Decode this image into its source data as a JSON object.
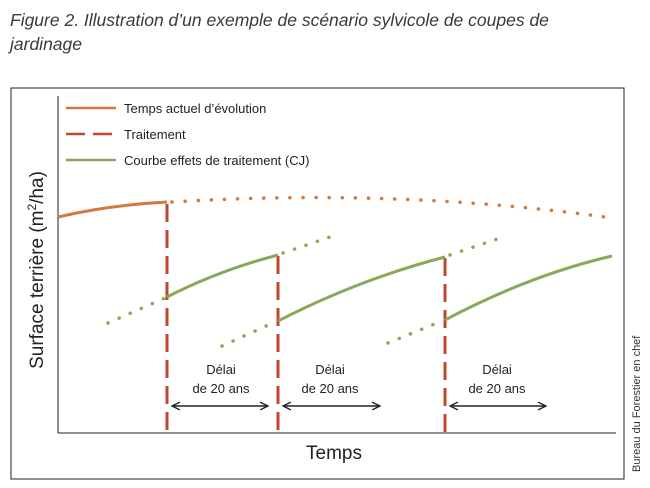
{
  "figure": {
    "caption_line1": "Figure 2. Illustration d’un exemple de scénario sylvicole de coupes de",
    "caption_line2": "jardinage",
    "credit": "Bureau du Forestier en chef"
  },
  "legend": {
    "items": [
      {
        "label": "Temps actuel d’évolution",
        "color": "#d2793f",
        "style": "solid"
      },
      {
        "label": "Traitement",
        "color": "#c0452c",
        "style": "dashed"
      },
      {
        "label": "Courbe effets de traitement (CJ)",
        "color": "#8aa75a",
        "style": "solid"
      }
    ]
  },
  "axes": {
    "ylabel_main": "Surface terrière (m",
    "ylabel_sup": "2",
    "ylabel_end": "/ha)",
    "xlabel": "Temps"
  },
  "delays": [
    {
      "line1": "Délai",
      "line2": "de 20 ans"
    },
    {
      "line1": "Délai",
      "line2": "de 20 ans"
    },
    {
      "line1": "Délai",
      "line2": "de 20 ans"
    }
  ],
  "colors": {
    "current": "#d2793f",
    "treatment": "#c0452c",
    "effect": "#8aa75a",
    "frame": "#222222"
  }
}
